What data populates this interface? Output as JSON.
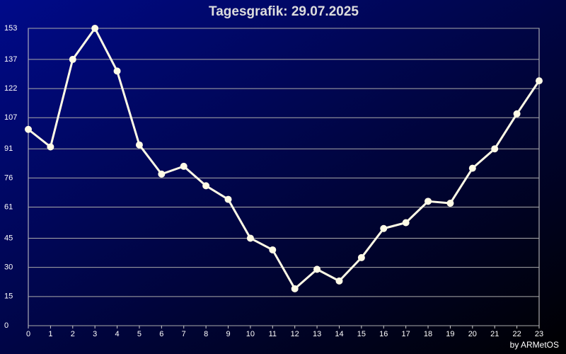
{
  "chart_data": {
    "type": "line",
    "title": "Tagesgrafik: 29.07.2025",
    "credit": "by ARMetOS",
    "x": [
      0,
      1,
      2,
      3,
      4,
      5,
      6,
      7,
      8,
      9,
      10,
      11,
      12,
      13,
      14,
      15,
      16,
      17,
      18,
      19,
      20,
      21,
      22,
      23
    ],
    "series": [
      {
        "color": "#fffbe6",
        "values": [
          101,
          92,
          137,
          153,
          131,
          93,
          78,
          82,
          72,
          65,
          45,
          39,
          19,
          29,
          23,
          35,
          50,
          53,
          64,
          63,
          81,
          91,
          109,
          126
        ]
      }
    ],
    "xlim": [
      0,
      23
    ],
    "xticks": [
      0,
      1,
      2,
      3,
      4,
      5,
      6,
      7,
      8,
      9,
      10,
      11,
      12,
      13,
      14,
      15,
      16,
      17,
      18,
      19,
      20,
      21,
      22,
      23
    ],
    "ylim": [
      0,
      153
    ],
    "yticks": [
      0,
      15,
      30,
      45,
      61,
      76,
      91,
      107,
      122,
      137,
      153
    ],
    "grid": true
  }
}
